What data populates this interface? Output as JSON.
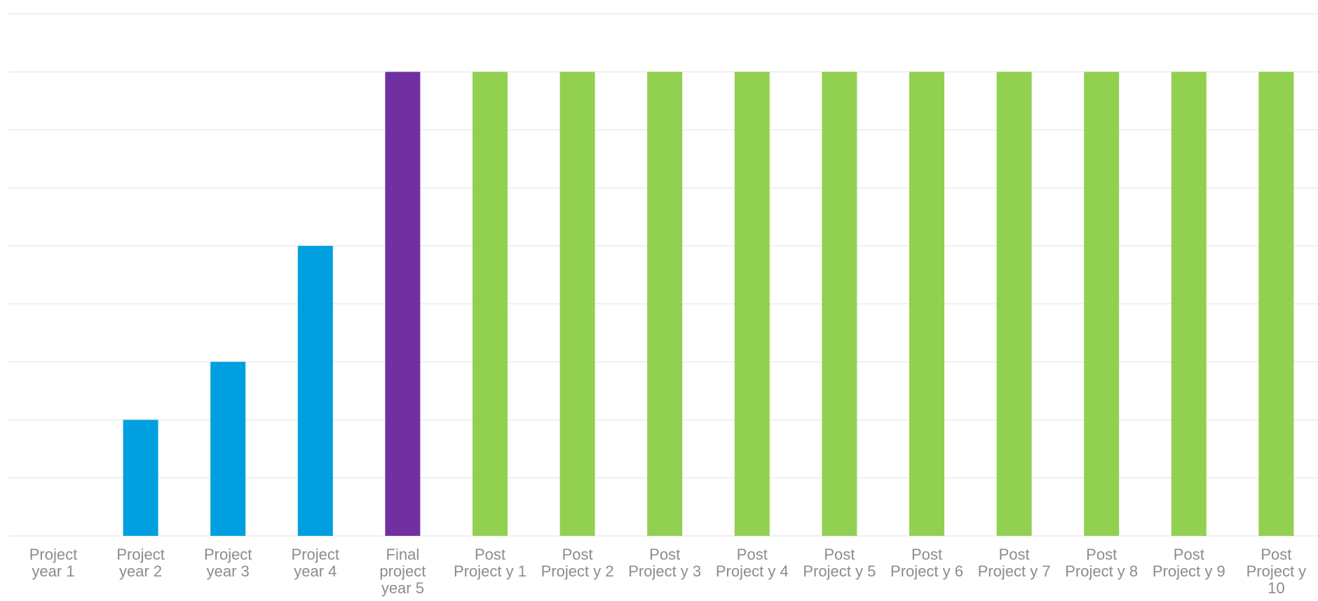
{
  "chart_data": {
    "type": "bar",
    "title": "",
    "xlabel": "",
    "ylabel": "",
    "categories": [
      [
        "Project",
        "year 1"
      ],
      [
        "Project",
        "year 2"
      ],
      [
        "Project",
        "year 3"
      ],
      [
        "Project",
        "year 4"
      ],
      [
        "Final",
        "project",
        "year 5"
      ],
      [
        "Post",
        "Project y 1"
      ],
      [
        "Post",
        "Project y 2"
      ],
      [
        "Post",
        "Project y 3"
      ],
      [
        "Post",
        "Project y 4"
      ],
      [
        "Post",
        "Project y 5"
      ],
      [
        "Post",
        "Project y 6"
      ],
      [
        "Post",
        "Project y 7"
      ],
      [
        "Post",
        "Project y 8"
      ],
      [
        "Post",
        "Project y 9"
      ],
      [
        "Post",
        "Project y",
        "10"
      ]
    ],
    "values": [
      0,
      2,
      3,
      5,
      8,
      8,
      8,
      8,
      8,
      8,
      8,
      8,
      8,
      8,
      8
    ],
    "bar_colors": [
      "#009fe0",
      "#009fe0",
      "#009fe0",
      "#009fe0",
      "#7030a0",
      "#92d050",
      "#92d050",
      "#92d050",
      "#92d050",
      "#92d050",
      "#92d050",
      "#92d050",
      "#92d050",
      "#92d050",
      "#92d050"
    ],
    "ylim": [
      0,
      9
    ],
    "grid": true,
    "legend": "none"
  }
}
